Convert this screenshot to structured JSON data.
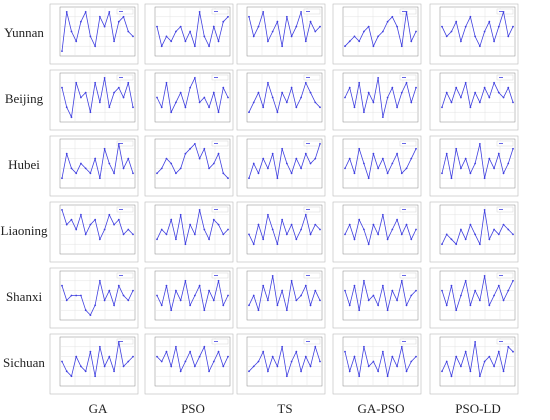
{
  "row_labels": [
    "Yunnan",
    "Beijing",
    "Hubei",
    "Liaoning",
    "Shanxi",
    "Sichuan"
  ],
  "column_labels": [
    "GA",
    "PSO",
    "TS",
    "GA-PSO",
    "PSO-LD"
  ],
  "chart_data": [
    {
      "type": "line",
      "color": "#4040e0",
      "ylim": [
        0,
        10
      ],
      "grid": true,
      "values": [
        1,
        9,
        5,
        3,
        7,
        9,
        4,
        2,
        8,
        6,
        9,
        3,
        7,
        8,
        5,
        4
      ]
    },
    {
      "type": "line",
      "color": "#4040e0",
      "ylim": [
        0,
        10
      ],
      "grid": true,
      "values": [
        6,
        2,
        4,
        3,
        5,
        6,
        3,
        5,
        2,
        9,
        4,
        2,
        6,
        3,
        7,
        8
      ]
    },
    {
      "type": "line",
      "color": "#4040e0",
      "ylim": [
        0,
        10
      ],
      "grid": true,
      "values": [
        8,
        4,
        6,
        9,
        3,
        5,
        7,
        2,
        8,
        4,
        6,
        9,
        3,
        7,
        5,
        6
      ]
    },
    {
      "type": "line",
      "color": "#4040e0",
      "ylim": [
        0,
        10
      ],
      "grid": true,
      "values": [
        2,
        3,
        4,
        3,
        5,
        6,
        2,
        4,
        5,
        7,
        8,
        6,
        2,
        9,
        3,
        5
      ]
    },
    {
      "type": "line",
      "color": "#4040e0",
      "ylim": [
        0,
        10
      ],
      "grid": true,
      "values": [
        6,
        4,
        5,
        7,
        3,
        6,
        8,
        4,
        2,
        5,
        7,
        3,
        6,
        9,
        4,
        6
      ]
    },
    {
      "type": "line",
      "color": "#4040e0",
      "ylim": [
        0,
        10
      ],
      "grid": true,
      "values": [
        7,
        3,
        1,
        8,
        5,
        6,
        2,
        8,
        4,
        9,
        3,
        6,
        7,
        5,
        8,
        3
      ]
    },
    {
      "type": "line",
      "color": "#4040e0",
      "ylim": [
        0,
        10
      ],
      "grid": true,
      "values": [
        5,
        3,
        8,
        2,
        4,
        6,
        3,
        7,
        9,
        4,
        5,
        3,
        6,
        2,
        7,
        5
      ]
    },
    {
      "type": "line",
      "color": "#4040e0",
      "ylim": [
        0,
        10
      ],
      "grid": true,
      "values": [
        2,
        4,
        6,
        3,
        8,
        5,
        2,
        6,
        4,
        7,
        3,
        5,
        8,
        6,
        4,
        3
      ]
    },
    {
      "type": "line",
      "color": "#4040e0",
      "ylim": [
        0,
        10
      ],
      "grid": true,
      "values": [
        5,
        7,
        3,
        8,
        2,
        6,
        4,
        9,
        1,
        5,
        7,
        3,
        6,
        8,
        4,
        7
      ]
    },
    {
      "type": "line",
      "color": "#4040e0",
      "ylim": [
        0,
        10
      ],
      "grid": true,
      "values": [
        3,
        6,
        4,
        7,
        5,
        8,
        3,
        6,
        4,
        7,
        5,
        8,
        6,
        5,
        7,
        4
      ]
    },
    {
      "type": "line",
      "color": "#4040e0",
      "ylim": [
        0,
        10
      ],
      "grid": true,
      "values": [
        2,
        7,
        4,
        3,
        5,
        4,
        3,
        6,
        2,
        8,
        5,
        3,
        9,
        4,
        6,
        3
      ]
    },
    {
      "type": "line",
      "color": "#4040e0",
      "ylim": [
        0,
        10
      ],
      "grid": true,
      "values": [
        3,
        4,
        6,
        5,
        3,
        4,
        7,
        8,
        9,
        6,
        8,
        4,
        5,
        7,
        3,
        2
      ]
    },
    {
      "type": "line",
      "color": "#4040e0",
      "ylim": [
        0,
        10
      ],
      "grid": true,
      "values": [
        2,
        5,
        3,
        6,
        4,
        7,
        2,
        8,
        5,
        3,
        6,
        4,
        7,
        5,
        6,
        9
      ]
    },
    {
      "type": "line",
      "color": "#4040e0",
      "ylim": [
        0,
        10
      ],
      "grid": true,
      "values": [
        4,
        6,
        3,
        8,
        5,
        2,
        7,
        4,
        6,
        3,
        5,
        7,
        3,
        4,
        6,
        8
      ]
    },
    {
      "type": "line",
      "color": "#4040e0",
      "ylim": [
        0,
        10
      ],
      "grid": true,
      "values": [
        3,
        7,
        2,
        8,
        4,
        6,
        3,
        5,
        9,
        2,
        6,
        4,
        7,
        3,
        5,
        8
      ]
    },
    {
      "type": "line",
      "color": "#4040e0",
      "ylim": [
        0,
        10
      ],
      "grid": true,
      "values": [
        9,
        6,
        7,
        5,
        8,
        4,
        6,
        7,
        3,
        5,
        8,
        6,
        7,
        4,
        5,
        4
      ]
    },
    {
      "type": "line",
      "color": "#4040e0",
      "ylim": [
        0,
        10
      ],
      "grid": true,
      "values": [
        3,
        5,
        4,
        7,
        3,
        8,
        2,
        6,
        4,
        9,
        5,
        3,
        7,
        6,
        4,
        5
      ]
    },
    {
      "type": "line",
      "color": "#4040e0",
      "ylim": [
        0,
        10
      ],
      "grid": true,
      "values": [
        4,
        2,
        6,
        3,
        8,
        5,
        2,
        7,
        4,
        6,
        3,
        5,
        8,
        4,
        6,
        5
      ]
    },
    {
      "type": "line",
      "color": "#4040e0",
      "ylim": [
        0,
        10
      ],
      "grid": true,
      "values": [
        4,
        6,
        3,
        7,
        5,
        2,
        6,
        4,
        8,
        3,
        5,
        7,
        4,
        6,
        3,
        5
      ]
    },
    {
      "type": "line",
      "color": "#4040e0",
      "ylim": [
        0,
        10
      ],
      "grid": true,
      "values": [
        2,
        4,
        3,
        2,
        5,
        3,
        6,
        4,
        2,
        9,
        3,
        5,
        4,
        6,
        5,
        4
      ]
    },
    {
      "type": "line",
      "color": "#4040e0",
      "ylim": [
        0,
        10
      ],
      "grid": true,
      "values": [
        7,
        4,
        5,
        5,
        5,
        2,
        1,
        3,
        8,
        4,
        6,
        3,
        7,
        5,
        4,
        6
      ]
    },
    {
      "type": "line",
      "color": "#4040e0",
      "ylim": [
        0,
        10
      ],
      "grid": true,
      "values": [
        5,
        3,
        7,
        2,
        6,
        4,
        8,
        3,
        5,
        7,
        2,
        6,
        4,
        8,
        3,
        5
      ]
    },
    {
      "type": "line",
      "color": "#4040e0",
      "ylim": [
        0,
        10
      ],
      "grid": true,
      "values": [
        3,
        5,
        2,
        7,
        4,
        9,
        3,
        6,
        2,
        8,
        4,
        5,
        7,
        3,
        6,
        4
      ]
    },
    {
      "type": "line",
      "color": "#4040e0",
      "ylim": [
        0,
        10
      ],
      "grid": true,
      "values": [
        6,
        3,
        7,
        2,
        8,
        4,
        5,
        3,
        7,
        2,
        6,
        4,
        8,
        3,
        5,
        6
      ]
    },
    {
      "type": "line",
      "color": "#4040e0",
      "ylim": [
        0,
        10
      ],
      "grid": true,
      "values": [
        6,
        3,
        7,
        2,
        5,
        8,
        3,
        6,
        4,
        9,
        3,
        5,
        7,
        4,
        6,
        8
      ]
    },
    {
      "type": "line",
      "color": "#4040e0",
      "ylim": [
        0,
        10
      ],
      "grid": true,
      "values": [
        5,
        3,
        2,
        6,
        4,
        3,
        7,
        2,
        8,
        4,
        6,
        3,
        9,
        4,
        5,
        6
      ]
    },
    {
      "type": "line",
      "color": "#4040e0",
      "ylim": [
        0,
        10
      ],
      "grid": true,
      "values": [
        6,
        5,
        7,
        4,
        8,
        3,
        5,
        7,
        4,
        6,
        8,
        3,
        5,
        7,
        4,
        6
      ]
    },
    {
      "type": "line",
      "color": "#4040e0",
      "ylim": [
        0,
        10
      ],
      "grid": true,
      "values": [
        3,
        4,
        5,
        7,
        3,
        6,
        4,
        8,
        2,
        5,
        7,
        3,
        6,
        4,
        8,
        5
      ]
    },
    {
      "type": "line",
      "color": "#4040e0",
      "ylim": [
        0,
        10
      ],
      "grid": true,
      "values": [
        7,
        3,
        6,
        2,
        8,
        4,
        5,
        3,
        7,
        2,
        6,
        4,
        8,
        3,
        5,
        6
      ]
    },
    {
      "type": "line",
      "color": "#4040e0",
      "ylim": [
        0,
        10
      ],
      "grid": true,
      "values": [
        3,
        5,
        2,
        6,
        4,
        7,
        3,
        9,
        2,
        5,
        6,
        4,
        7,
        3,
        8,
        7
      ]
    }
  ]
}
